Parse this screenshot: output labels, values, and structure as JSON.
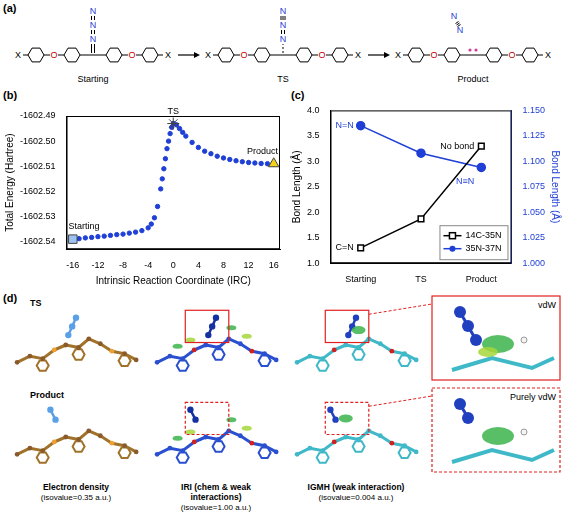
{
  "scheme": {
    "label": "(a)",
    "stages": [
      "Starting",
      "TS",
      "Product"
    ],
    "atoms": {
      "end": "X",
      "bridge": "O",
      "azide": "N"
    }
  },
  "chart_data": [
    {
      "panel_label": "(b)",
      "type": "scatter",
      "x_label": "Intrinsic Reaction Coordinate (IRC)",
      "y_label": "Total Energy (Hartree)",
      "xlim": [
        -17,
        17
      ],
      "xticks": [
        -16,
        -12,
        -8,
        -4,
        0,
        4,
        8,
        12,
        16
      ],
      "ylim": [
        -1602.543,
        -1602.49
      ],
      "yticks": [
        -1602.54,
        -1602.53,
        -1602.52,
        -1602.51,
        {
          "value": -1602.5,
          "label": "-1602.50"
        },
        -1602.49
      ],
      "grid": false,
      "series": [
        {
          "color": "#1f3fd6",
          "marker": "circle",
          "x": [
            -16,
            -15,
            -14,
            -13,
            -12,
            -11,
            -10,
            -9,
            -8,
            -7,
            -6,
            -5,
            -4,
            -3.5,
            -3,
            -2.5,
            -2,
            -1.75,
            -1.5,
            -1.25,
            -1,
            -0.75,
            -0.5,
            -0.25,
            0,
            0.5,
            1,
            1.5,
            2,
            3,
            4,
            5,
            6,
            7,
            8,
            9,
            10,
            11,
            12,
            13,
            14,
            15,
            16
          ],
          "values": [
            -1602.539,
            -1602.5388,
            -1602.5385,
            -1602.5383,
            -1602.538,
            -1602.5378,
            -1602.5375,
            -1602.5372,
            -1602.537,
            -1602.5366,
            -1602.5362,
            -1602.5356,
            -1602.5345,
            -1602.533,
            -1602.5305,
            -1602.526,
            -1602.519,
            -1602.515,
            -1602.511,
            -1602.507,
            -1602.503,
            -1602.5,
            -1602.497,
            -1602.4945,
            -1602.493,
            -1602.4935,
            -1602.495,
            -1602.4965,
            -1602.498,
            -1602.5005,
            -1602.5025,
            -1602.504,
            -1602.505,
            -1602.506,
            -1602.5067,
            -1602.5073,
            -1602.5078,
            -1602.5082,
            -1602.5085,
            -1602.5087,
            -1602.5089,
            -1602.509,
            -1602.509
          ]
        }
      ],
      "annotations": [
        {
          "text": "Starting",
          "x": -16,
          "y": -1602.539,
          "marker": "square",
          "color": "#9fc3f0"
        },
        {
          "text": "TS",
          "x": 0,
          "y": -1602.493,
          "marker": "star",
          "color": "#f0a020"
        },
        {
          "text": "Product",
          "x": 16,
          "y": -1602.509,
          "marker": "triangle",
          "color": "#f2d21a"
        }
      ]
    },
    {
      "panel_label": "(c)",
      "type": "line",
      "categories": [
        "Starting",
        "TS",
        "Product"
      ],
      "y_label": "Bond Length (Å)",
      "y2_label": "Bond Length (Å)",
      "ylim": [
        1.0,
        4.0
      ],
      "yticks": [
        {
          "value": 1,
          "label": "1.0"
        },
        1.5,
        {
          "value": 2,
          "label": "2.0"
        },
        2.5,
        {
          "value": 3,
          "label": "3.0"
        },
        3.5,
        {
          "value": 4,
          "label": "4.0"
        }
      ],
      "y2lim": [
        1.0,
        1.15
      ],
      "y2ticks": [
        {
          "value": 1,
          "label": "1.000"
        },
        1.025,
        {
          "value": 1.05,
          "label": "1.050"
        },
        1.075,
        {
          "value": 1.1,
          "label": "1.100"
        },
        1.125,
        {
          "value": 1.15,
          "label": "1.150"
        }
      ],
      "grid": false,
      "legend": "lower right",
      "series": [
        {
          "name": "14C-35N",
          "color": "#000000",
          "marker": "square",
          "values": [
            1.3,
            1.87,
            3.3
          ]
        },
        {
          "name": "35N-37N",
          "color": "#1f3fd6",
          "marker": "circle",
          "axis": "y2",
          "values": [
            1.135,
            1.108,
            1.094
          ]
        }
      ],
      "annotations": [
        {
          "text": "C=N",
          "x": "Starting",
          "y": 1.3,
          "axis": "y",
          "color": "#000000"
        },
        {
          "text": "N=N",
          "x": "Starting",
          "y": 1.135,
          "axis": "y2",
          "color": "#1f3fd6"
        },
        {
          "text": "No bond",
          "x": "Product",
          "y": 3.3,
          "axis": "y",
          "color": "#000000"
        },
        {
          "text": "N≡N",
          "x": "Product",
          "y": 1.08,
          "axis": "y2",
          "color": "#1f3fd6"
        }
      ]
    }
  ],
  "interaction_panel": {
    "label": "(d)",
    "rows": [
      "TS",
      "Product"
    ],
    "columns": [
      {
        "title": "Electron density",
        "note": "(isovalue=0.35 a.u.)"
      },
      {
        "title": "IRI (chem & weak interactions)",
        "note": "(isovalue=1.00 a.u.)"
      },
      {
        "title": "IGMH (weak interaction)",
        "note": "(isovalue=0.004 a.u.)"
      }
    ],
    "insets": [
      "vdW",
      "Purely vdW"
    ]
  }
}
